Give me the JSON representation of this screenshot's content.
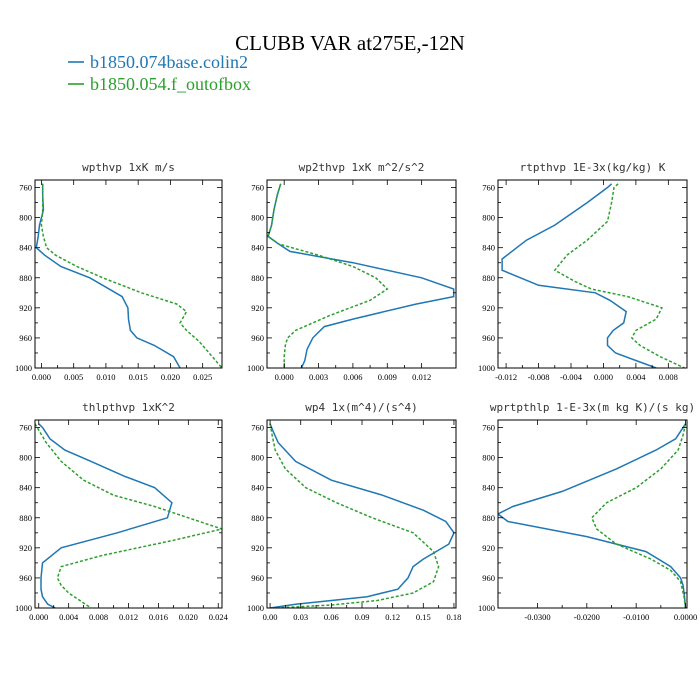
{
  "figure": {
    "title": "CLUBB VAR at275E,-12N",
    "series_meta": [
      {
        "name": "b1850.074base.colin2",
        "color": "#1f77b4",
        "dash": "solid"
      },
      {
        "name": "b1850.054.f_outofbox",
        "color": "#2ca02c",
        "dash": "dashed"
      }
    ]
  },
  "chart_data": [
    {
      "type": "line",
      "title": "wpthvp  1xK m/s",
      "xlim": [
        -0.001,
        0.028
      ],
      "ylim": [
        1000,
        750
      ],
      "xticks": [
        0.0,
        0.005,
        0.01,
        0.015,
        0.02,
        0.025
      ],
      "xtick_labels": [
        "0.000",
        "0.005",
        "0.010",
        "0.015",
        "0.020",
        "0.025"
      ],
      "yticks": [
        760,
        800,
        840,
        880,
        920,
        960,
        1000
      ],
      "series": [
        {
          "name": "b1850.074base.colin2",
          "x": [
            0.0002,
            0.0002,
            0.0003,
            -0.0003,
            -0.0005,
            -0.0008,
            0.0005,
            0.003,
            0.0075,
            0.0125,
            0.0134,
            0.0135,
            0.0138,
            0.0148,
            0.0175,
            0.0205,
            0.0215
          ],
          "y": [
            755,
            770,
            790,
            810,
            825,
            840,
            850,
            865,
            880,
            905,
            920,
            935,
            950,
            960,
            970,
            985,
            1000
          ]
        },
        {
          "name": "b1850.054.f_outofbox",
          "x": [
            0.0002,
            0.0002,
            0.0002,
            0.0,
            0.0003,
            0.0008,
            0.0022,
            0.0055,
            0.0095,
            0.0155,
            0.021,
            0.0225,
            0.0215,
            0.0225,
            0.0245,
            0.0265,
            0.028
          ],
          "y": [
            755,
            770,
            790,
            810,
            825,
            840,
            850,
            865,
            880,
            900,
            915,
            925,
            940,
            950,
            965,
            985,
            1000
          ]
        }
      ]
    },
    {
      "type": "line",
      "title": "wp2thvp  1xK m^2/s^2",
      "xlim": [
        -0.0015,
        0.015
      ],
      "ylim": [
        1000,
        750
      ],
      "xticks": [
        0.0,
        0.003,
        0.006,
        0.009,
        0.012
      ],
      "xtick_labels": [
        "0.000",
        "0.003",
        "0.006",
        "0.009",
        "0.012"
      ],
      "yticks": [
        760,
        800,
        840,
        880,
        920,
        960,
        1000
      ],
      "series": [
        {
          "name": "b1850.074base.colin2",
          "x": [
            -0.0003,
            -0.0006,
            -0.0009,
            -0.0011,
            -0.0014,
            -0.0005,
            0.0005,
            0.006,
            0.012,
            0.0148,
            0.0148,
            0.0115,
            0.006,
            0.0035,
            0.0025,
            0.002,
            0.0018,
            0.0015
          ],
          "y": [
            755,
            770,
            790,
            810,
            825,
            835,
            845,
            860,
            880,
            895,
            905,
            915,
            935,
            945,
            960,
            975,
            990,
            1000
          ]
        },
        {
          "name": "b1850.054.f_outofbox",
          "x": [
            -0.0003,
            -0.0006,
            -0.0009,
            -0.0011,
            -0.0014,
            -0.0005,
            0.003,
            0.006,
            0.008,
            0.009,
            0.0075,
            0.004,
            0.001,
            0.0003,
            0.0001,
            0.0,
            0.0
          ],
          "y": [
            755,
            770,
            790,
            810,
            825,
            835,
            850,
            865,
            880,
            895,
            910,
            930,
            950,
            960,
            970,
            985,
            1000
          ]
        }
      ]
    },
    {
      "type": "line",
      "title": "rtpthvp  1E-3x(kg/kg) K",
      "xlim": [
        -0.013,
        0.0103
      ],
      "ylim": [
        1000,
        750
      ],
      "xticks": [
        -0.012,
        -0.008,
        -0.004,
        0.0,
        0.004,
        0.008
      ],
      "xtick_labels": [
        "-0.012",
        "-0.008",
        "-0.004",
        "0.000",
        "0.004",
        "0.008"
      ],
      "yticks": [
        760,
        800,
        840,
        880,
        920,
        960,
        1000
      ],
      "series": [
        {
          "name": "b1850.074base.colin2",
          "x": [
            0.001,
            0.0005,
            -0.002,
            -0.006,
            -0.0095,
            -0.0125,
            -0.0125,
            -0.008,
            -0.001,
            0.0008,
            0.0028,
            0.0025,
            0.0012,
            0.0005,
            0.0005,
            0.0015,
            0.004,
            0.0065
          ],
          "y": [
            755,
            760,
            780,
            810,
            830,
            855,
            870,
            890,
            900,
            910,
            925,
            940,
            950,
            960,
            970,
            980,
            990,
            1000
          ]
        },
        {
          "name": "b1850.054.f_outofbox",
          "x": [
            0.0018,
            0.0013,
            0.001,
            0.0005,
            -0.002,
            -0.0045,
            -0.006,
            -0.0035,
            -0.0015,
            0.003,
            0.0072,
            0.0065,
            0.004,
            0.0035,
            0.0045,
            0.007,
            0.01
          ],
          "y": [
            755,
            760,
            780,
            805,
            830,
            850,
            870,
            885,
            895,
            905,
            920,
            935,
            950,
            960,
            970,
            985,
            1000
          ]
        }
      ]
    },
    {
      "type": "line",
      "title": "thlpthvp  1xK^2",
      "xlim": [
        -0.0005,
        0.0245
      ],
      "ylim": [
        1000,
        750
      ],
      "xticks": [
        0.0,
        0.004,
        0.008,
        0.012,
        0.016,
        0.02,
        0.024
      ],
      "xtick_labels": [
        "0.000",
        "0.004",
        "0.008",
        "0.012",
        "0.016",
        "0.020",
        "0.024"
      ],
      "yticks": [
        760,
        800,
        840,
        880,
        920,
        960,
        1000
      ],
      "series": [
        {
          "name": "b1850.074base.colin2",
          "x": [
            0.0,
            0.0005,
            0.0015,
            0.0035,
            0.007,
            0.0115,
            0.0155,
            0.0178,
            0.0172,
            0.0105,
            0.003,
            0.0005,
            0.0003,
            0.0003,
            0.0005,
            0.0012,
            0.0022
          ],
          "y": [
            755,
            760,
            775,
            790,
            805,
            825,
            840,
            860,
            880,
            900,
            920,
            940,
            960,
            975,
            985,
            995,
            1000
          ]
        },
        {
          "name": "b1850.054.f_outofbox",
          "x": [
            -0.0005,
            -0.0002,
            0.001,
            0.003,
            0.006,
            0.01,
            0.0155,
            0.02,
            0.0245,
            0.018,
            0.0085,
            0.003,
            0.0025,
            0.003,
            0.004,
            0.0058,
            0.007
          ],
          "y": [
            755,
            760,
            780,
            805,
            830,
            850,
            865,
            880,
            895,
            910,
            930,
            945,
            960,
            970,
            980,
            992,
            1000
          ]
        }
      ]
    },
    {
      "type": "line",
      "title": "wp4  1x(m^4)/(s^4)",
      "xlim": [
        -0.003,
        0.182
      ],
      "ylim": [
        1000,
        750
      ],
      "xticks": [
        0.0,
        0.03,
        0.06,
        0.09,
        0.12,
        0.15,
        0.18
      ],
      "xtick_labels": [
        "0.00",
        "0.03",
        "0.06",
        "0.09",
        "0.12",
        "0.15",
        "0.18"
      ],
      "yticks": [
        760,
        800,
        840,
        880,
        920,
        960,
        1000
      ],
      "series": [
        {
          "name": "b1850.074base.colin2",
          "x": [
            0.0,
            0.003,
            0.008,
            0.025,
            0.06,
            0.11,
            0.15,
            0.172,
            0.18,
            0.175,
            0.15,
            0.14,
            0.135,
            0.125,
            0.095,
            0.06,
            0.025,
            0.0
          ],
          "y": [
            755,
            765,
            780,
            805,
            830,
            850,
            870,
            885,
            900,
            915,
            935,
            945,
            960,
            975,
            985,
            990,
            995,
            1000
          ]
        },
        {
          "name": "b1850.054.f_outofbox",
          "x": [
            0.0,
            0.002,
            0.005,
            0.015,
            0.035,
            0.065,
            0.1,
            0.14,
            0.16,
            0.165,
            0.16,
            0.14,
            0.105,
            0.06,
            0.02,
            0.0
          ],
          "y": [
            755,
            770,
            790,
            815,
            840,
            860,
            880,
            900,
            925,
            945,
            965,
            980,
            990,
            996,
            999,
            1000
          ]
        }
      ]
    },
    {
      "type": "line",
      "title": "wprtpthlp  1-E-3x(m kg K)/(s kg)",
      "xlim": [
        -0.038,
        0.0003
      ],
      "ylim": [
        1000,
        750
      ],
      "xticks": [
        -0.03,
        -0.02,
        -0.01,
        0.0
      ],
      "xtick_labels": [
        "-0.0300",
        "-0.0200",
        "-0.0100",
        "0.0000"
      ],
      "yticks": [
        760,
        800,
        840,
        880,
        920,
        960,
        1000
      ],
      "series": [
        {
          "name": "b1850.074base.colin2",
          "x": [
            0.0,
            -0.001,
            -0.002,
            -0.006,
            -0.014,
            -0.025,
            -0.035,
            -0.038,
            -0.036,
            -0.02,
            -0.008,
            -0.003,
            -0.001,
            -0.0005,
            -0.0002,
            0.0
          ],
          "y": [
            755,
            765,
            775,
            790,
            815,
            845,
            865,
            875,
            885,
            905,
            925,
            945,
            960,
            970,
            985,
            1000
          ]
        },
        {
          "name": "b1850.054.f_outofbox",
          "x": [
            0.0,
            -0.0005,
            -0.0015,
            -0.005,
            -0.01,
            -0.016,
            -0.019,
            -0.018,
            -0.014,
            -0.007,
            -0.003,
            -0.001,
            -0.0003,
            0.0
          ],
          "y": [
            755,
            770,
            790,
            815,
            840,
            860,
            880,
            895,
            915,
            935,
            950,
            965,
            985,
            1000
          ]
        }
      ]
    }
  ]
}
